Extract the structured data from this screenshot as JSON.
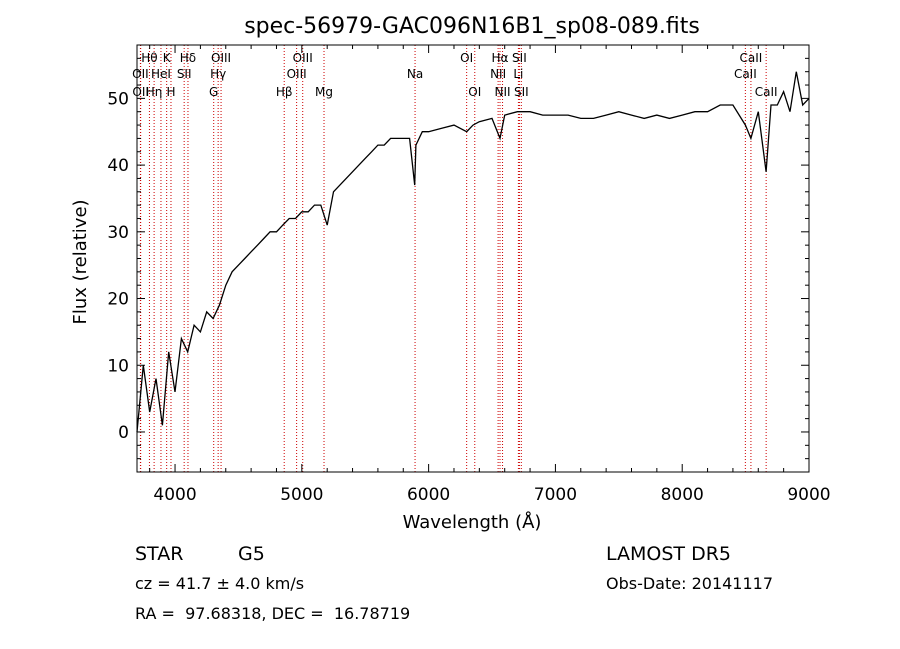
{
  "chart_data": {
    "type": "line",
    "title": "spec-56979-GAC096N16B1_sp08-089.fits",
    "xlabel": "Wavelength (Å)",
    "ylabel": "Flux (relative)",
    "xlim": [
      3700,
      9000
    ],
    "ylim": [
      -6,
      58
    ],
    "xticks": [
      4000,
      5000,
      6000,
      7000,
      8000,
      9000
    ],
    "yticks": [
      0,
      10,
      20,
      30,
      40,
      50
    ],
    "series": [
      {
        "x": [
          3700,
          3750,
          3800,
          3850,
          3900,
          3950,
          4000,
          4050,
          4100,
          4150,
          4200,
          4250,
          4300,
          4350,
          4400,
          4450,
          4500,
          4550,
          4600,
          4650,
          4700,
          4750,
          4800,
          4850,
          4900,
          4950,
          5000,
          5050,
          5100,
          5150,
          5200,
          5250,
          5300,
          5350,
          5400,
          5450,
          5500,
          5550,
          5600,
          5650,
          5700,
          5750,
          5800,
          5850,
          5890,
          5900,
          5950,
          6000,
          6100,
          6200,
          6300,
          6350,
          6400,
          6500,
          6563,
          6600,
          6700,
          6800,
          6900,
          7000,
          7100,
          7200,
          7300,
          7400,
          7500,
          7600,
          7700,
          7800,
          7900,
          8000,
          8100,
          8200,
          8300,
          8400,
          8498,
          8542,
          8600,
          8662,
          8700,
          8750,
          8800,
          8850,
          8900,
          8950,
          9000
        ],
        "y": [
          0,
          10,
          3,
          8,
          1,
          12,
          6,
          14,
          12,
          16,
          15,
          18,
          17,
          19,
          22,
          24,
          25,
          26,
          27,
          28,
          29,
          30,
          30,
          31,
          32,
          32,
          33,
          33,
          34,
          34,
          31,
          36,
          37,
          38,
          39,
          40,
          41,
          42,
          43,
          43,
          44,
          44,
          44,
          44,
          37,
          43,
          45,
          45,
          45.5,
          46,
          45,
          46,
          46.5,
          47,
          44,
          47.5,
          48,
          48,
          47.5,
          47.5,
          47.5,
          47,
          47,
          47.5,
          48,
          47.5,
          47,
          47.5,
          47,
          47.5,
          48,
          48,
          49,
          49,
          46,
          44,
          48,
          39,
          49,
          49,
          51,
          48,
          54,
          49,
          50
        ]
      }
    ],
    "line_markers": [
      {
        "label": "Hθ",
        "x": 3798,
        "row": 0
      },
      {
        "label": "K",
        "x": 3934,
        "row": 0
      },
      {
        "label": "Hδ",
        "x": 4102,
        "row": 0
      },
      {
        "label": "OIII",
        "x": 4363,
        "row": 0
      },
      {
        "label": "OIII",
        "x": 5007,
        "row": 0
      },
      {
        "label": "OI",
        "x": 6300,
        "row": 0
      },
      {
        "label": "Hα",
        "x": 6563,
        "row": 0
      },
      {
        "label": "SII",
        "x": 6716,
        "row": 0
      },
      {
        "label": "CaII",
        "x": 8542,
        "row": 0
      },
      {
        "label": "OII",
        "x": 3727,
        "row": 1
      },
      {
        "label": "HeI",
        "x": 3889,
        "row": 1
      },
      {
        "label": "SII",
        "x": 4072,
        "row": 1
      },
      {
        "label": "Hγ",
        "x": 4340,
        "row": 1
      },
      {
        "label": "OIII",
        "x": 4959,
        "row": 1
      },
      {
        "label": "Na",
        "x": 5893,
        "row": 1
      },
      {
        "label": "NII",
        "x": 6548,
        "row": 1
      },
      {
        "label": "Li",
        "x": 6708,
        "row": 1
      },
      {
        "label": "CaII",
        "x": 8498,
        "row": 1
      },
      {
        "label": "OII",
        "x": 3729,
        "row": 2
      },
      {
        "label": "Hη",
        "x": 3835,
        "row": 2
      },
      {
        "label": "H",
        "x": 3968,
        "row": 2
      },
      {
        "label": "G",
        "x": 4305,
        "row": 2
      },
      {
        "label": "Hβ",
        "x": 4861,
        "row": 2
      },
      {
        "label": "Mg",
        "x": 5175,
        "row": 2
      },
      {
        "label": "OI",
        "x": 6364,
        "row": 2
      },
      {
        "label": "NII",
        "x": 6583,
        "row": 2
      },
      {
        "label": "SII",
        "x": 6731,
        "row": 2
      },
      {
        "label": "CaII",
        "x": 8662,
        "row": 2
      }
    ],
    "line_color": "#000000",
    "marker_color": "#cc0000"
  },
  "info": {
    "class": "STAR",
    "subclass": "G5",
    "survey": "LAMOST DR5",
    "redshift": "cz = 41.7 ± 4.0 km/s",
    "obs_date": "Obs-Date: 20141117",
    "coords": "RA =  97.68318, DEC =  16.78719"
  }
}
